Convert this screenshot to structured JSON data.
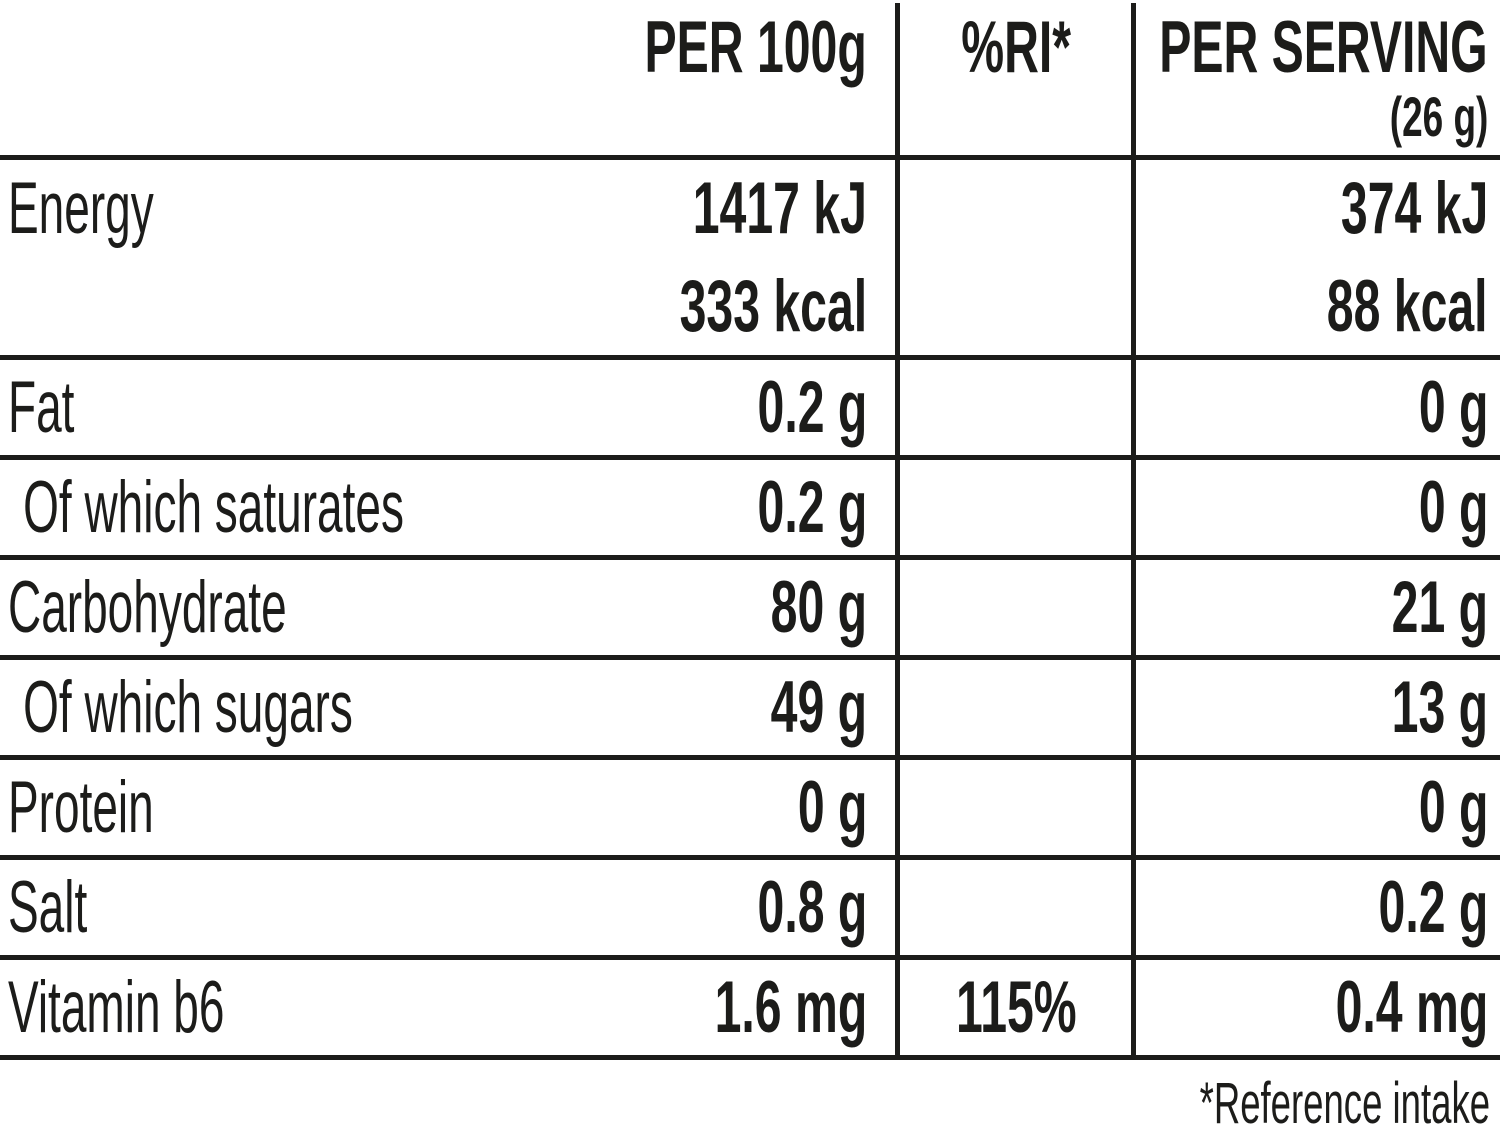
{
  "colors": {
    "ink": "#1c1c1a",
    "background": "#ffffff"
  },
  "header": {
    "per_100g": "PER 100g",
    "ri": "%RI*",
    "per_serving_line1": "PER SERVING",
    "per_serving_line2": "(26 g)"
  },
  "rows": [
    {
      "label": "Energy",
      "indent": false,
      "per100g": "1417 kJ",
      "per100g_line2": "333 kcal",
      "ri": "",
      "serving": "374 kJ",
      "serving_line2": "88 kcal"
    },
    {
      "label": "Fat",
      "indent": false,
      "per100g": "0.2 g",
      "ri": "",
      "serving": "0 g"
    },
    {
      "label": "Of which saturates",
      "indent": true,
      "per100g": "0.2 g",
      "ri": "",
      "serving": "0 g"
    },
    {
      "label": "Carbohydrate",
      "indent": false,
      "per100g": "80 g",
      "ri": "",
      "serving": "21 g"
    },
    {
      "label": "Of which sugars",
      "indent": true,
      "per100g": "49 g",
      "ri": "",
      "serving": "13 g"
    },
    {
      "label": "Protein",
      "indent": false,
      "per100g": "0 g",
      "ri": "",
      "serving": "0 g"
    },
    {
      "label": "Salt",
      "indent": false,
      "per100g": "0.8 g",
      "ri": "",
      "serving": "0.2 g"
    },
    {
      "label": "Vitamin b6",
      "indent": false,
      "per100g": "1.6 mg",
      "ri": "115%",
      "serving": "0.4 mg"
    }
  ],
  "footer": {
    "note": "*Reference intake"
  }
}
